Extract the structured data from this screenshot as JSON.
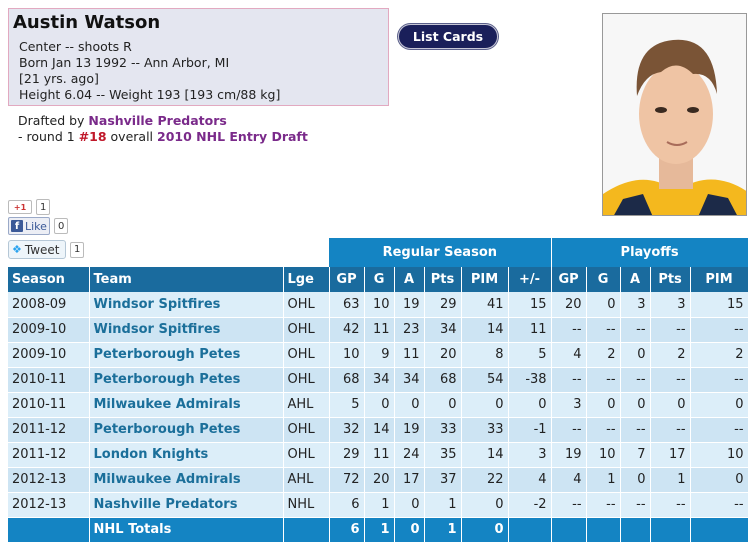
{
  "player": {
    "name": "Austin Watson",
    "position_line": "Center -- shoots R",
    "born_line": "Born Jan 13 1992 -- Ann Arbor, MI",
    "age_line": "[21 yrs. ago]",
    "size_line": "Height 6.04 -- Weight 193 [193 cm/88 kg]"
  },
  "draft": {
    "prefix": "Drafted by ",
    "team": "Nashville Predators",
    "round_text": "- round 1 ",
    "pick": "#18",
    "overall_text": " overall ",
    "draft_name": "2010 NHL Entry Draft"
  },
  "buttons": {
    "list_cards": "List Cards"
  },
  "social": {
    "gplus_label": "+1",
    "gplus_count": "1",
    "like_label": "Like",
    "like_count": "0",
    "tweet_label": "Tweet",
    "tweet_count": "1"
  },
  "table": {
    "group_headers": {
      "regular": "Regular Season",
      "playoffs": "Playoffs"
    },
    "columns": [
      "Season",
      "Team",
      "Lge",
      "GP",
      "G",
      "A",
      "Pts",
      "PIM",
      "+/-",
      "GP",
      "G",
      "A",
      "Pts",
      "PIM"
    ],
    "rows": [
      [
        "2008-09",
        "Windsor Spitfires",
        "OHL",
        "63",
        "10",
        "19",
        "29",
        "41",
        "15",
        "20",
        "0",
        "3",
        "3",
        "15"
      ],
      [
        "2009-10",
        "Windsor Spitfires",
        "OHL",
        "42",
        "11",
        "23",
        "34",
        "14",
        "11",
        "--",
        "--",
        "--",
        "--",
        "--"
      ],
      [
        "2009-10",
        "Peterborough Petes",
        "OHL",
        "10",
        "9",
        "11",
        "20",
        "8",
        "5",
        "4",
        "2",
        "0",
        "2",
        "2"
      ],
      [
        "2010-11",
        "Peterborough Petes",
        "OHL",
        "68",
        "34",
        "34",
        "68",
        "54",
        "-38",
        "--",
        "--",
        "--",
        "--",
        "--"
      ],
      [
        "2010-11",
        "Milwaukee Admirals",
        "AHL",
        "5",
        "0",
        "0",
        "0",
        "0",
        "0",
        "3",
        "0",
        "0",
        "0",
        "0"
      ],
      [
        "2011-12",
        "Peterborough Petes",
        "OHL",
        "32",
        "14",
        "19",
        "33",
        "33",
        "-1",
        "--",
        "--",
        "--",
        "--",
        "--"
      ],
      [
        "2011-12",
        "London Knights",
        "OHL",
        "29",
        "11",
        "24",
        "35",
        "14",
        "3",
        "19",
        "10",
        "7",
        "17",
        "10"
      ],
      [
        "2012-13",
        "Milwaukee Admirals",
        "AHL",
        "72",
        "20",
        "17",
        "37",
        "22",
        "4",
        "4",
        "1",
        "0",
        "1",
        "0"
      ],
      [
        "2012-13",
        "Nashville Predators",
        "NHL",
        "6",
        "1",
        "0",
        "1",
        "0",
        "-2",
        "--",
        "--",
        "--",
        "--",
        "--"
      ]
    ],
    "totals": [
      "",
      "NHL Totals",
      "",
      "6",
      "1",
      "0",
      "1",
      "0",
      "",
      "",
      "",
      "",
      "",
      ""
    ]
  },
  "colors": {
    "profile_bg": "#e4e6f0",
    "header_light": "#1484c3",
    "header_dark": "#1a6b9e",
    "row_light": "#dceef9",
    "row_alt": "#cde4f3",
    "team_link": "#1b6f9a",
    "draft_purple": "#7a2a8a",
    "pick_red": "#c0182a",
    "button_navy": "#1a1f5a"
  },
  "icons": [
    "gplus-icon",
    "facebook-icon",
    "twitter-bird-icon",
    "player-photo"
  ]
}
